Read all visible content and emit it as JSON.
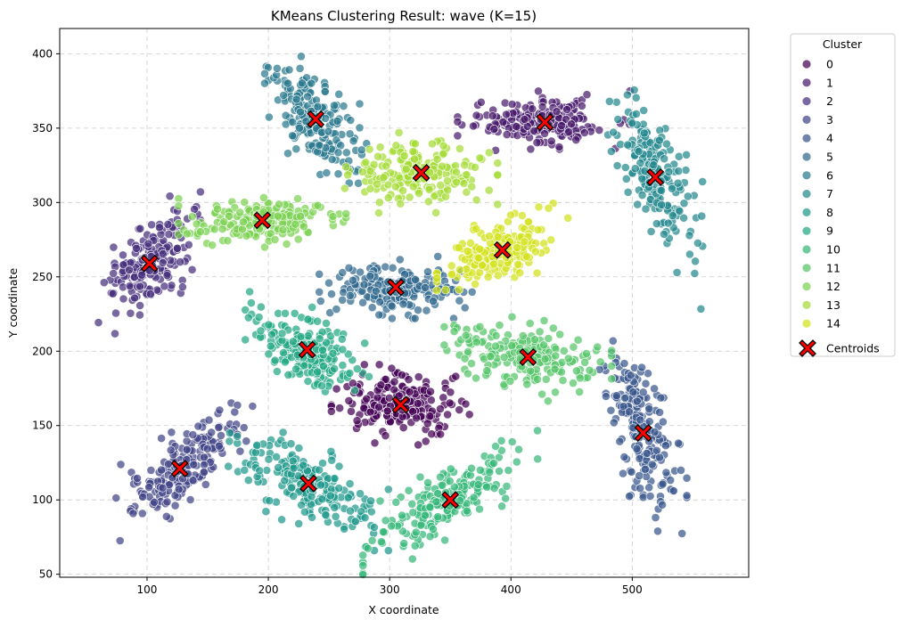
{
  "chart_data": {
    "type": "scatter",
    "title": "KMeans Clustering Result: wave (K=15)",
    "xlabel": "X coordinate",
    "ylabel": "Y coordinate",
    "xlim": [
      28,
      596
    ],
    "ylim": [
      48,
      417
    ],
    "xticks": [
      100,
      200,
      300,
      400,
      500
    ],
    "yticks": [
      50,
      100,
      150,
      200,
      250,
      300,
      350,
      400
    ],
    "grid": true,
    "legend": {
      "title": "Cluster",
      "placement": "outside-right",
      "entries": [
        "0",
        "1",
        "2",
        "3",
        "4",
        "5",
        "6",
        "7",
        "8",
        "9",
        "10",
        "11",
        "12",
        "13",
        "14",
        "Centroids"
      ]
    },
    "palette": [
      "#440154",
      "#481a6c",
      "#472f7d",
      "#414487",
      "#39568c",
      "#31688e",
      "#2a788e",
      "#23888e",
      "#1f988b",
      "#22a884",
      "#35b779",
      "#54c568",
      "#7ad151",
      "#a5db36",
      "#d2e21b"
    ],
    "centroid_style": {
      "marker": "X",
      "color": "#ff0000",
      "edge": "#000000"
    },
    "clusters": [
      {
        "label": "0",
        "centroid": [
          309,
          164
        ]
      },
      {
        "label": "1",
        "centroid": [
          428,
          354
        ]
      },
      {
        "label": "2",
        "centroid": [
          102,
          259
        ]
      },
      {
        "label": "3",
        "centroid": [
          127,
          121
        ]
      },
      {
        "label": "4",
        "centroid": [
          509,
          145
        ]
      },
      {
        "label": "5",
        "centroid": [
          305,
          243
        ]
      },
      {
        "label": "6",
        "centroid": [
          239,
          356
        ]
      },
      {
        "label": "7",
        "centroid": [
          519,
          317
        ]
      },
      {
        "label": "8",
        "centroid": [
          233,
          111
        ]
      },
      {
        "label": "9",
        "centroid": [
          232,
          201
        ]
      },
      {
        "label": "10",
        "centroid": [
          350,
          100
        ]
      },
      {
        "label": "11",
        "centroid": [
          414,
          196
        ]
      },
      {
        "label": "12",
        "centroid": [
          195,
          288
        ]
      },
      {
        "label": "13",
        "centroid": [
          326,
          320
        ]
      },
      {
        "label": "14",
        "centroid": [
          393,
          268
        ]
      }
    ]
  }
}
